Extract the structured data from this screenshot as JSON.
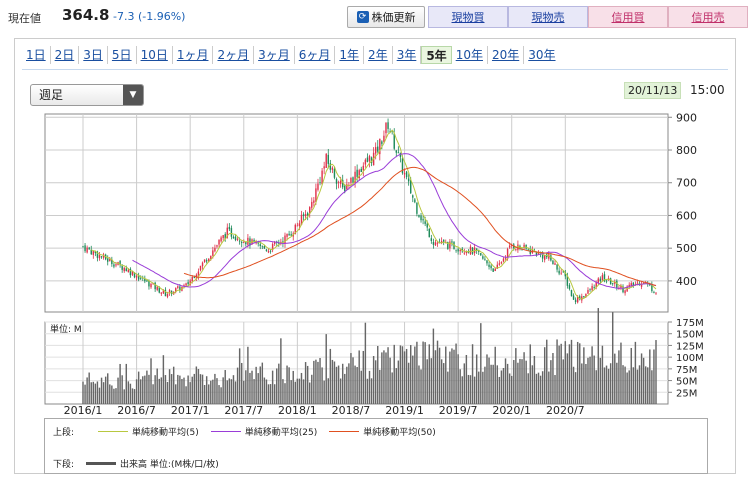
{
  "header": {
    "price_label": "現在値",
    "price": "364.8",
    "change": "-7.3 (-1.96%)",
    "refresh_label": "株価更新",
    "buttons": [
      "現物買",
      "現物売",
      "信用買",
      "信用売"
    ]
  },
  "periods": {
    "items": [
      "1日",
      "2日",
      "3日",
      "5日",
      "10日",
      "1ヶ月",
      "2ヶ月",
      "3ヶ月",
      "6ヶ月",
      "1年",
      "2年",
      "3年",
      "5年",
      "10年",
      "20年",
      "30年"
    ],
    "active": "5年"
  },
  "controls": {
    "interval": "週足",
    "date": "20/11/13",
    "time": "15:00"
  },
  "colors": {
    "up": "#e0314b",
    "down": "#1e8a5a",
    "ma5": "#b8c840",
    "ma25": "#9a3dd8",
    "ma50": "#e05020",
    "volume": "#666666"
  },
  "chart_data": {
    "type": "candlestick",
    "x_ticks": [
      "2016/1",
      "2016/7",
      "2017/1",
      "2017/7",
      "2018/1",
      "2018/7",
      "2019/1",
      "2019/7",
      "2020/1",
      "2020/7"
    ],
    "price_axis": {
      "ticks": [
        400,
        500,
        600,
        700,
        800,
        900
      ],
      "range": [
        305,
        910
      ]
    },
    "volume_axis": {
      "unit_label": "単位: M",
      "ticks": [
        "25M",
        "50M",
        "75M",
        "100M",
        "125M",
        "150M",
        "175M"
      ],
      "range": [
        0,
        175
      ]
    },
    "price_anchors": [
      [
        0,
        505
      ],
      [
        10,
        470
      ],
      [
        20,
        440
      ],
      [
        30,
        400
      ],
      [
        40,
        360
      ],
      [
        50,
        385
      ],
      [
        60,
        470
      ],
      [
        70,
        550
      ],
      [
        80,
        520
      ],
      [
        90,
        495
      ],
      [
        100,
        540
      ],
      [
        110,
        620
      ],
      [
        118,
        770
      ],
      [
        126,
        680
      ],
      [
        134,
        740
      ],
      [
        142,
        790
      ],
      [
        148,
        880
      ],
      [
        154,
        760
      ],
      [
        162,
        620
      ],
      [
        170,
        520
      ],
      [
        180,
        505
      ],
      [
        190,
        490
      ],
      [
        200,
        430
      ],
      [
        208,
        510
      ],
      [
        218,
        490
      ],
      [
        226,
        470
      ],
      [
        234,
        410
      ],
      [
        238,
        340
      ],
      [
        244,
        360
      ],
      [
        252,
        410
      ],
      [
        262,
        375
      ],
      [
        272,
        400
      ],
      [
        278,
        364.8
      ]
    ],
    "volume_anchors": [
      [
        0,
        50
      ],
      [
        20,
        48
      ],
      [
        40,
        60
      ],
      [
        60,
        58
      ],
      [
        80,
        62
      ],
      [
        100,
        66
      ],
      [
        120,
        82
      ],
      [
        140,
        90
      ],
      [
        160,
        96
      ],
      [
        180,
        100
      ],
      [
        200,
        88
      ],
      [
        220,
        92
      ],
      [
        240,
        108
      ],
      [
        250,
        118
      ],
      [
        260,
        104
      ],
      [
        270,
        96
      ],
      [
        278,
        90
      ]
    ],
    "n_weeks": 279
  },
  "legend": {
    "upper_label": "上段:",
    "ma_labels": [
      "単純移動平均(5)",
      "単純移動平均(25)",
      "単純移動平均(50)"
    ],
    "lower_label": "下段:",
    "volume_label": "出来高 単位:(M株/口/枚)"
  }
}
